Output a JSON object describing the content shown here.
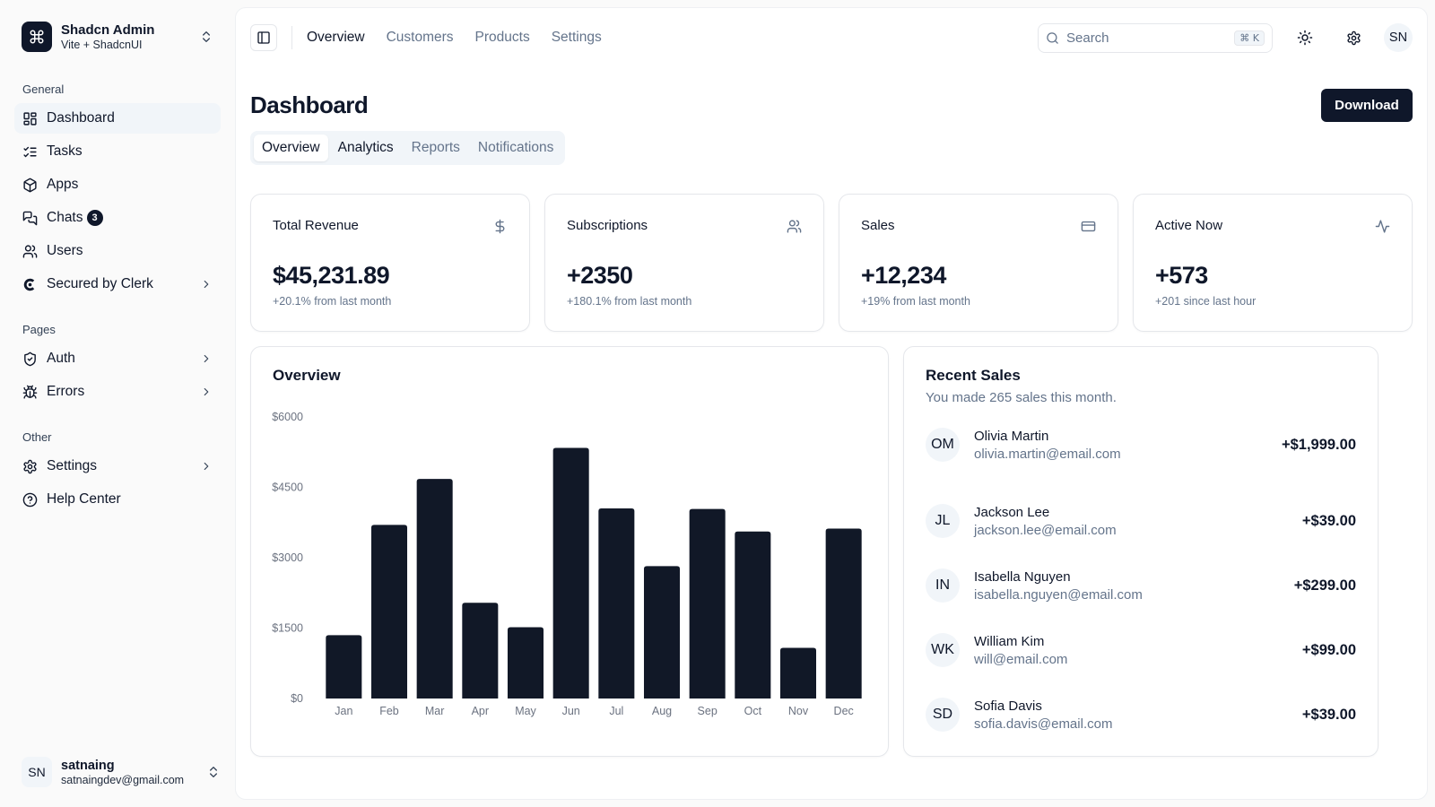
{
  "team": {
    "name": "Shadcn Admin",
    "subtitle": "Vite + ShadcnUI"
  },
  "sidebar": {
    "groups": [
      {
        "label": "General"
      },
      {
        "label": "Pages"
      },
      {
        "label": "Other"
      }
    ],
    "general": [
      {
        "label": "Dashboard",
        "icon": "layout-dashboard-icon"
      },
      {
        "label": "Tasks",
        "icon": "list-checks-icon"
      },
      {
        "label": "Apps",
        "icon": "package-icon"
      },
      {
        "label": "Chats",
        "icon": "messages-icon",
        "badge": "3"
      },
      {
        "label": "Users",
        "icon": "users-icon"
      },
      {
        "label": "Secured by Clerk",
        "icon": "clerk-logo-icon"
      }
    ],
    "pages": [
      {
        "label": "Auth",
        "icon": "shield-check-icon"
      },
      {
        "label": "Errors",
        "icon": "bug-icon"
      }
    ],
    "other": [
      {
        "label": "Settings",
        "icon": "gear-icon"
      },
      {
        "label": "Help Center",
        "icon": "help-circle-icon"
      }
    ],
    "user": {
      "initials": "SN",
      "name": "satnaing",
      "email": "satnaingdev@gmail.com"
    }
  },
  "topnav": {
    "links": [
      "Overview",
      "Customers",
      "Products",
      "Settings"
    ],
    "search_placeholder": "Search",
    "shortcut": "⌘ K",
    "avatar_initials": "SN"
  },
  "page": {
    "title": "Dashboard",
    "download_label": "Download",
    "tabs": [
      "Overview",
      "Analytics",
      "Reports",
      "Notifications"
    ]
  },
  "stats": [
    {
      "title": "Total Revenue",
      "value": "$45,231.89",
      "sub": "+20.1% from last month",
      "icon": "dollar-icon"
    },
    {
      "title": "Subscriptions",
      "value": "+2350",
      "sub": "+180.1% from last month",
      "icon": "users-icon"
    },
    {
      "title": "Sales",
      "value": "+12,234",
      "sub": "+19% from last month",
      "icon": "credit-card-icon"
    },
    {
      "title": "Active Now",
      "value": "+573",
      "sub": "+201 since last hour",
      "icon": "activity-icon"
    }
  ],
  "overview": {
    "title": "Overview"
  },
  "chart_data": {
    "type": "bar",
    "categories": [
      "Jan",
      "Feb",
      "Mar",
      "Apr",
      "May",
      "Jun",
      "Jul",
      "Aug",
      "Sep",
      "Oct",
      "Nov",
      "Dec"
    ],
    "values": [
      1350,
      3700,
      4680,
      2040,
      1520,
      5340,
      4050,
      2820,
      4040,
      3560,
      1080,
      3620
    ],
    "y_ticks": [
      "$0",
      "$1500",
      "$3000",
      "$4500",
      "$6000"
    ],
    "ylim": [
      0,
      6000
    ],
    "color": "#111827",
    "grid": false
  },
  "recent_sales": {
    "title": "Recent Sales",
    "subtitle": "You made 265 sales this month.",
    "items": [
      {
        "initials": "OM",
        "name": "Olivia Martin",
        "email": "olivia.martin@email.com",
        "amount": "+$1,999.00"
      },
      {
        "initials": "JL",
        "name": "Jackson Lee",
        "email": "jackson.lee@email.com",
        "amount": "+$39.00"
      },
      {
        "initials": "IN",
        "name": "Isabella Nguyen",
        "email": "isabella.nguyen@email.com",
        "amount": "+$299.00"
      },
      {
        "initials": "WK",
        "name": "William Kim",
        "email": "will@email.com",
        "amount": "+$99.00"
      },
      {
        "initials": "SD",
        "name": "Sofia Davis",
        "email": "sofia.davis@email.com",
        "amount": "+$39.00"
      }
    ]
  },
  "colors": {
    "primary": "#0f172a",
    "muted": "#64748b",
    "border": "#e5e7eb",
    "accent_bg": "#f1f5f9"
  }
}
